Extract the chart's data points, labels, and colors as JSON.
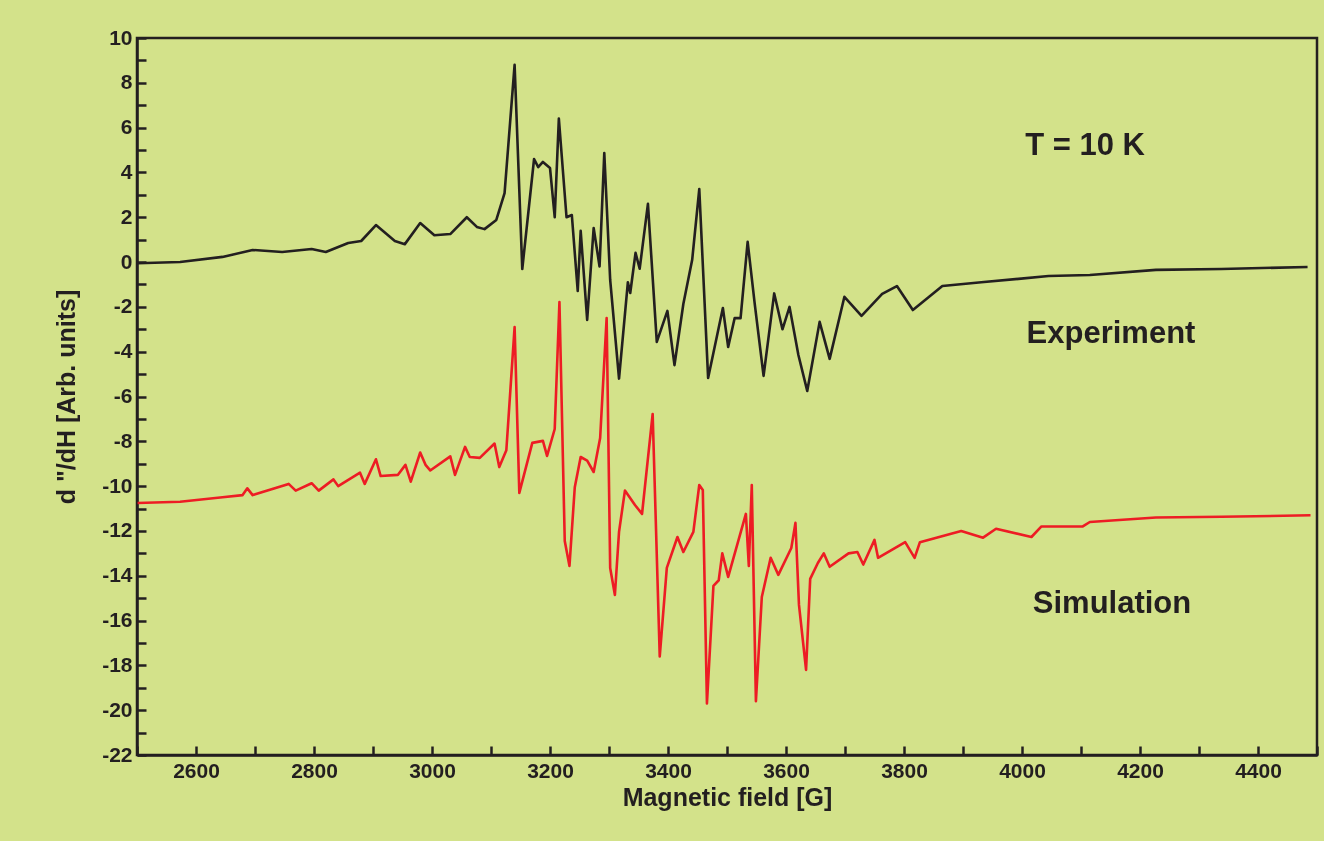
{
  "chart_data": {
    "type": "line",
    "xlabel": "Magnetic field [G]",
    "ylabel": "d \"/dH [Arb. units]",
    "annotations": [
      "T = 10 K"
    ],
    "xlim": [
      2500,
      4500
    ],
    "ylim": [
      -22,
      10
    ],
    "xticks": [
      {
        "value": 2500,
        "label": null
      },
      2600,
      {
        "value": 2700,
        "label": null
      },
      2800,
      {
        "value": 2900,
        "label": null
      },
      3000,
      {
        "value": 3100,
        "label": null
      },
      3200,
      {
        "value": 3300,
        "label": null
      },
      3400,
      {
        "value": 3500,
        "label": null
      },
      3600,
      {
        "value": 3700,
        "label": null
      },
      3800,
      {
        "value": 3900,
        "label": null
      },
      4000,
      {
        "value": 4100,
        "label": null
      },
      4200,
      {
        "value": 4300,
        "label": null
      },
      4400,
      {
        "value": 4500,
        "label": null
      }
    ],
    "yticks": [
      -22,
      {
        "value": -21,
        "label": null
      },
      -20,
      {
        "value": -19,
        "label": null
      },
      -18,
      {
        "value": -17,
        "label": null
      },
      -16,
      {
        "value": -15,
        "label": null
      },
      -14,
      {
        "value": -13,
        "label": null
      },
      -12,
      {
        "value": -11,
        "label": null
      },
      -10,
      {
        "value": -9,
        "label": null
      },
      -8,
      {
        "value": -7,
        "label": null
      },
      -6,
      {
        "value": -5,
        "label": null
      },
      -4,
      {
        "value": -3,
        "label": null
      },
      -2,
      {
        "value": -1,
        "label": null
      },
      0,
      {
        "value": 1,
        "label": null
      },
      2,
      {
        "value": 3,
        "label": null
      },
      4,
      {
        "value": 5,
        "label": null
      },
      6,
      {
        "value": 7,
        "label": null
      },
      8,
      {
        "value": 9,
        "label": null
      },
      10
    ],
    "grid": false,
    "marker": "none",
    "line_style": "solid",
    "series": [
      {
        "name": "Experiment",
        "color": "#231f20",
        "type": "line",
        "x": [
          2501,
          2573,
          2645,
          2696,
          2746,
          2796,
          2820,
          2858,
          2880,
          2905,
          2937,
          2954,
          2980,
          3004,
          3031,
          3059,
          3076,
          3089,
          3109,
          3123,
          3140,
          3153,
          3173,
          3180,
          3188,
          3200,
          3208,
          3215,
          3228,
          3237,
          3247,
          3252,
          3263,
          3274,
          3284,
          3292,
          3302,
          3317,
          3332,
          3336,
          3345,
          3352,
          3366,
          3381,
          3399,
          3411,
          3426,
          3441,
          3453,
          3468,
          3483,
          3493,
          3502,
          3513,
          3523,
          3535,
          3547,
          3562,
          3580,
          3594,
          3606,
          3621,
          3636,
          3657,
          3674,
          3699,
          3728,
          3763,
          3788,
          3815,
          3865,
          3931,
          3994,
          4045,
          4115,
          4227,
          4338,
          4484
        ],
        "values": [
          -0.05,
          0,
          0.23,
          0.54,
          0.45,
          0.58,
          0.45,
          0.85,
          0.94,
          1.65,
          0.94,
          0.8,
          1.74,
          1.2,
          1.25,
          2.0,
          1.57,
          1.47,
          1.88,
          3.08,
          8.8,
          -0.31,
          4.6,
          4.24,
          4.47,
          4.2,
          2.0,
          6.4,
          2.0,
          2.1,
          -1.29,
          1.39,
          -2.58,
          1.52,
          -0.2,
          4.87,
          -0.8,
          -5.2,
          -0.9,
          -1.38,
          0.41,
          -0.3,
          2.6,
          -3.56,
          -2.18,
          -4.6,
          -1.87,
          0.1,
          3.26,
          -5.17,
          -3.3,
          -2.05,
          -3.79,
          -2.5,
          -2.5,
          0.9,
          -1.87,
          -5.08,
          -1.4,
          -3.0,
          -2.0,
          -4.15,
          -5.75,
          -2.67,
          -4.32,
          -1.55,
          -2.4,
          -1.42,
          -1.07,
          -2.14,
          -1.07,
          -0.9,
          -0.75,
          -0.62,
          -0.58,
          -0.35,
          -0.31,
          -0.22
        ]
      },
      {
        "name": "Simulation",
        "color": "#ed1c24",
        "type": "line",
        "x": [
          2501,
          2573,
          2645,
          2679,
          2687,
          2696,
          2757,
          2769,
          2796,
          2808,
          2833,
          2841,
          2878,
          2886,
          2905,
          2913,
          2942,
          2955,
          2964,
          2980,
          2989,
          2997,
          3031,
          3039,
          3056,
          3064,
          3081,
          3106,
          3114,
          3126,
          3140,
          3148,
          3170,
          3188,
          3195,
          3208,
          3216,
          3225,
          3233,
          3242,
          3252,
          3263,
          3274,
          3285,
          3296,
          3302,
          3310,
          3317,
          3327,
          3344,
          3356,
          3374,
          3386,
          3398,
          3416,
          3426,
          3443,
          3453,
          3459,
          3466,
          3477,
          3486,
          3492,
          3502,
          3532,
          3537,
          3542,
          3549,
          3559,
          3574,
          3587,
          3609,
          3616,
          3622,
          3634,
          3641,
          3654,
          3664,
          3674,
          3706,
          3721,
          3731,
          3750,
          3756,
          3802,
          3818,
          3827,
          3897,
          3934,
          3956,
          4016,
          4033,
          4103,
          4115,
          4227,
          4338,
          4489
        ],
        "values": [
          -10.75,
          -10.7,
          -10.5,
          -10.4,
          -10.1,
          -10.4,
          -9.9,
          -10.2,
          -9.87,
          -10.2,
          -9.7,
          -10.0,
          -9.4,
          -9.9,
          -8.8,
          -9.55,
          -9.5,
          -9.05,
          -9.8,
          -8.5,
          -9.05,
          -9.3,
          -8.67,
          -9.5,
          -8.25,
          -8.7,
          -8.74,
          -8.1,
          -9.15,
          -8.4,
          -2.9,
          -10.3,
          -8.07,
          -7.98,
          -8.65,
          -7.45,
          -1.78,
          -12.45,
          -13.56,
          -10.05,
          -8.7,
          -8.86,
          -9.37,
          -7.85,
          -2.5,
          -13.65,
          -14.86,
          -12.04,
          -10.2,
          -10.84,
          -11.24,
          -6.78,
          -17.6,
          -13.65,
          -12.27,
          -12.94,
          -12.04,
          -9.95,
          -10.17,
          -19.7,
          -14.45,
          -14.2,
          -13.0,
          -14.05,
          -11.24,
          -13.56,
          -9.95,
          -19.6,
          -14.95,
          -13.2,
          -13.96,
          -12.76,
          -11.64,
          -15.3,
          -18.2,
          -14.14,
          -13.43,
          -13.0,
          -13.6,
          -13.0,
          -12.94,
          -13.5,
          -12.4,
          -13.2,
          -12.5,
          -13.2,
          -12.5,
          -12.0,
          -12.3,
          -11.9,
          -12.27,
          -11.8,
          -11.8,
          -11.6,
          -11.4,
          -11.37,
          -11.3
        ]
      }
    ]
  }
}
